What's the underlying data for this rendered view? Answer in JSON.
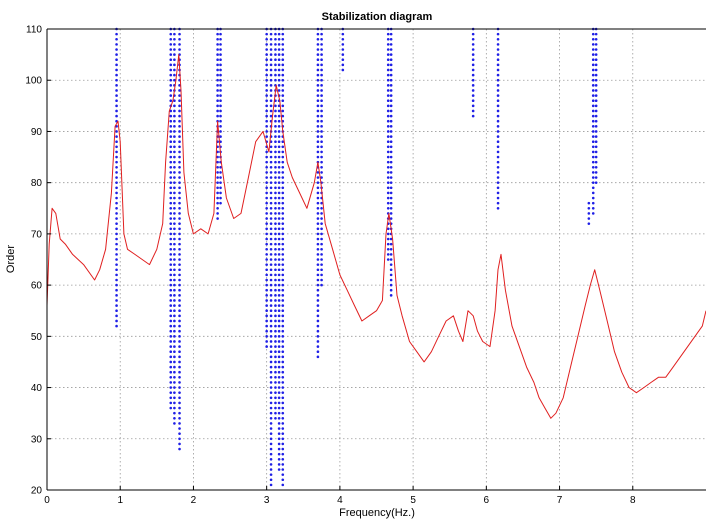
{
  "chart_data": {
    "type": "scatter",
    "title": "Stabilization diagram",
    "xlabel": "Frequency(Hz.)",
    "ylabel": "Order",
    "xlim": [
      0,
      9
    ],
    "ylim": [
      20,
      110
    ],
    "x_ticks": [
      0,
      1,
      2,
      3,
      4,
      5,
      6,
      7,
      8
    ],
    "y_ticks": [
      20,
      30,
      40,
      50,
      60,
      70,
      80,
      90,
      100,
      110
    ],
    "grid": true,
    "legend": "none",
    "colors": {
      "stable_poles": "#1f1fe6",
      "spectrum": "#e02020",
      "grid": "#9a9a9a"
    },
    "stable_pole_columns": [
      {
        "freq": 0.95,
        "order_min": 52,
        "order_max": 110
      },
      {
        "freq": 1.69,
        "order_min": 36,
        "order_max": 110
      },
      {
        "freq": 1.74,
        "order_min": 33,
        "order_max": 110
      },
      {
        "freq": 1.81,
        "order_min": 28,
        "order_max": 110
      },
      {
        "freq": 2.33,
        "order_min": 73,
        "order_max": 110
      },
      {
        "freq": 2.37,
        "order_min": 76,
        "order_max": 110
      },
      {
        "freq": 3.0,
        "order_min": 48,
        "order_max": 110
      },
      {
        "freq": 3.06,
        "order_min": 21,
        "order_max": 110
      },
      {
        "freq": 3.12,
        "order_min": 34,
        "order_max": 110
      },
      {
        "freq": 3.17,
        "order_min": 24,
        "order_max": 110
      },
      {
        "freq": 3.22,
        "order_min": 21,
        "order_max": 110
      },
      {
        "freq": 3.7,
        "order_min": 46,
        "order_max": 110
      },
      {
        "freq": 3.75,
        "order_min": 60,
        "order_max": 110
      },
      {
        "freq": 4.04,
        "order_min": 102,
        "order_max": 110
      },
      {
        "freq": 4.66,
        "order_min": 65,
        "order_max": 110
      },
      {
        "freq": 4.7,
        "order_min": 58,
        "order_max": 110
      },
      {
        "freq": 5.82,
        "order_min": 93,
        "order_max": 110
      },
      {
        "freq": 6.16,
        "order_min": 75,
        "order_max": 110
      },
      {
        "freq": 7.4,
        "order_min": 72,
        "order_max": 76
      },
      {
        "freq": 7.46,
        "order_min": 74,
        "order_max": 110
      },
      {
        "freq": 7.5,
        "order_min": 80,
        "order_max": 110
      }
    ],
    "series": [
      {
        "style": "line",
        "x": [
          0.0,
          0.03,
          0.07,
          0.12,
          0.18,
          0.25,
          0.35,
          0.5,
          0.65,
          0.72,
          0.8,
          0.88,
          0.93,
          0.97,
          1.0,
          1.05,
          1.1,
          1.2,
          1.3,
          1.4,
          1.5,
          1.58,
          1.62,
          1.67,
          1.72,
          1.76,
          1.8,
          1.83,
          1.87,
          1.93,
          2.0,
          2.1,
          2.2,
          2.28,
          2.33,
          2.38,
          2.45,
          2.55,
          2.65,
          2.75,
          2.85,
          2.95,
          3.03,
          3.08,
          3.13,
          3.18,
          3.22,
          3.28,
          3.35,
          3.45,
          3.55,
          3.65,
          3.7,
          3.74,
          3.8,
          3.9,
          4.0,
          4.1,
          4.2,
          4.3,
          4.4,
          4.5,
          4.58,
          4.63,
          4.67,
          4.72,
          4.78,
          4.85,
          4.95,
          5.05,
          5.15,
          5.25,
          5.35,
          5.45,
          5.55,
          5.62,
          5.68,
          5.75,
          5.82,
          5.88,
          5.95,
          6.05,
          6.12,
          6.16,
          6.2,
          6.26,
          6.35,
          6.45,
          6.55,
          6.65,
          6.72,
          6.8,
          6.88,
          6.95,
          7.05,
          7.15,
          7.25,
          7.35,
          7.42,
          7.48,
          7.55,
          7.65,
          7.75,
          7.85,
          7.95,
          8.05,
          8.15,
          8.25,
          8.35,
          8.45,
          8.55,
          8.65,
          8.75,
          8.85,
          8.95,
          9.0
        ],
        "y": [
          56,
          68,
          75,
          74,
          69,
          68,
          66,
          64,
          61,
          63,
          67,
          78,
          91,
          92,
          88,
          70,
          67,
          66,
          65,
          64,
          67,
          72,
          84,
          94,
          96,
          100,
          105,
          98,
          82,
          74,
          70,
          71,
          70,
          74,
          92,
          84,
          77,
          73,
          74,
          81,
          88,
          90,
          86,
          93,
          99,
          96,
          90,
          84,
          81,
          78,
          75,
          80,
          84,
          80,
          72,
          67,
          62,
          59,
          56,
          53,
          54,
          55,
          57,
          70,
          74,
          69,
          58,
          54,
          49,
          47,
          45,
          47,
          50,
          53,
          54,
          51,
          49,
          55,
          54,
          51,
          49,
          48,
          55,
          63,
          66,
          59,
          52,
          48,
          44,
          41,
          38,
          36,
          34,
          35,
          38,
          44,
          50,
          56,
          60,
          63,
          59,
          53,
          47,
          43,
          40,
          39,
          40,
          41,
          42,
          42,
          44,
          46,
          48,
          50,
          52,
          55
        ]
      }
    ]
  }
}
